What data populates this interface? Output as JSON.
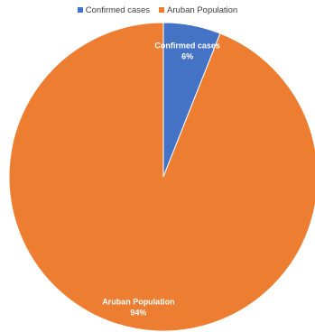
{
  "chart_data": {
    "type": "pie",
    "title": "",
    "categories": [
      "Confirmed cases",
      "Aruban Population"
    ],
    "values": [
      6,
      94
    ],
    "value_labels": [
      "6%",
      "94%"
    ],
    "colors": [
      "#4472C4",
      "#ED7D31"
    ],
    "legend_position": "top"
  }
}
